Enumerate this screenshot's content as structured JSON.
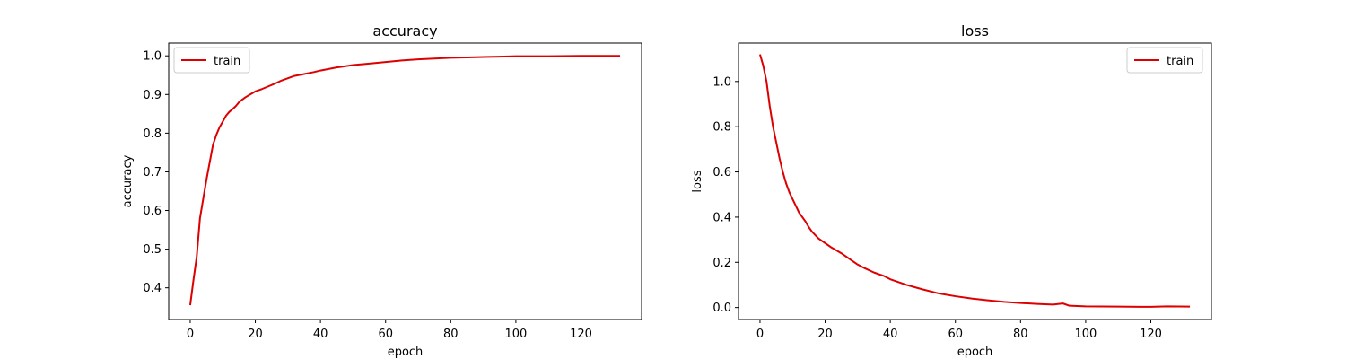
{
  "chart_data": [
    {
      "type": "line",
      "title": "accuracy",
      "xlabel": "epoch",
      "ylabel": "accuracy",
      "xlim": [
        -6.6,
        138.6
      ],
      "ylim": [
        0.318,
        1.033
      ],
      "xticks": [
        0,
        20,
        40,
        60,
        80,
        100,
        120
      ],
      "yticks": [
        0.4,
        0.5,
        0.6,
        0.7,
        0.8,
        0.9,
        1.0
      ],
      "xtick_labels": [
        "0",
        "20",
        "40",
        "60",
        "80",
        "100",
        "120"
      ],
      "ytick_labels": [
        "0.4",
        "0.5",
        "0.6",
        "0.7",
        "0.8",
        "0.9",
        "1.0"
      ],
      "grid": false,
      "legend": {
        "position": "top-left",
        "entries": [
          "train"
        ]
      },
      "series": [
        {
          "name": "train",
          "color": "#dd0000",
          "x": [
            0,
            1,
            2,
            3,
            4,
            5,
            6,
            7,
            8,
            9,
            10,
            11,
            12,
            13,
            14,
            15,
            16,
            17,
            18,
            20,
            22,
            24,
            26,
            28,
            30,
            32,
            35,
            38,
            40,
            45,
            50,
            55,
            60,
            65,
            70,
            75,
            80,
            85,
            90,
            95,
            100,
            110,
            120,
            132
          ],
          "y": [
            0.355,
            0.42,
            0.48,
            0.58,
            0.63,
            0.68,
            0.725,
            0.77,
            0.795,
            0.815,
            0.83,
            0.845,
            0.855,
            0.862,
            0.87,
            0.88,
            0.887,
            0.893,
            0.898,
            0.908,
            0.914,
            0.921,
            0.928,
            0.936,
            0.942,
            0.948,
            0.953,
            0.958,
            0.962,
            0.97,
            0.976,
            0.98,
            0.984,
            0.988,
            0.991,
            0.993,
            0.995,
            0.996,
            0.997,
            0.998,
            0.999,
            0.999,
            1.0,
            1.0
          ]
        }
      ]
    },
    {
      "type": "line",
      "title": "loss",
      "xlabel": "epoch",
      "ylabel": "loss",
      "xlim": [
        -6.6,
        138.6
      ],
      "ylim": [
        -0.053,
        1.17
      ],
      "xticks": [
        0,
        20,
        40,
        60,
        80,
        100,
        120
      ],
      "yticks": [
        0.0,
        0.2,
        0.4,
        0.6,
        0.8,
        1.0
      ],
      "xtick_labels": [
        "0",
        "20",
        "40",
        "60",
        "80",
        "100",
        "120"
      ],
      "ytick_labels": [
        "0.0",
        "0.2",
        "0.4",
        "0.6",
        "0.8",
        "1.0"
      ],
      "grid": false,
      "legend": {
        "position": "top-right",
        "entries": [
          "train"
        ]
      },
      "series": [
        {
          "name": "train",
          "color": "#dd0000",
          "x": [
            0,
            1,
            2,
            3,
            4,
            5,
            6,
            7,
            8,
            9,
            10,
            11,
            12,
            13,
            14,
            15,
            16,
            17,
            18,
            20,
            22,
            25,
            28,
            30,
            32,
            35,
            38,
            40,
            45,
            50,
            55,
            60,
            65,
            70,
            75,
            80,
            85,
            90,
            93,
            95,
            100,
            110,
            120,
            125,
            132
          ],
          "y": [
            1.12,
            1.07,
            1.0,
            0.89,
            0.8,
            0.73,
            0.66,
            0.6,
            0.55,
            0.51,
            0.48,
            0.45,
            0.42,
            0.4,
            0.38,
            0.355,
            0.335,
            0.32,
            0.305,
            0.285,
            0.265,
            0.24,
            0.21,
            0.19,
            0.175,
            0.155,
            0.14,
            0.125,
            0.1,
            0.08,
            0.062,
            0.05,
            0.04,
            0.032,
            0.025,
            0.02,
            0.016,
            0.013,
            0.018,
            0.008,
            0.005,
            0.004,
            0.003,
            0.005,
            0.004
          ]
        }
      ]
    }
  ]
}
